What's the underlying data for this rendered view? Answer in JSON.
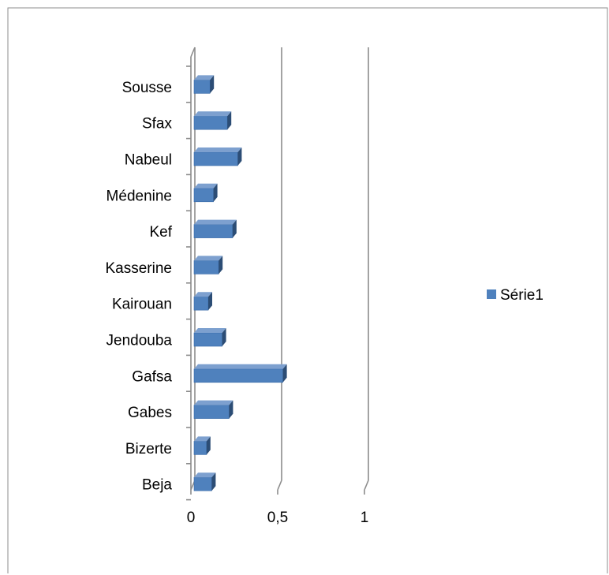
{
  "chart_data": {
    "type": "bar",
    "orientation": "horizontal",
    "style": "3d",
    "categories": [
      "Beja",
      "Bizerte",
      "Gabes",
      "Gafsa",
      "Jendouba",
      "Kairouan",
      "Kasserine",
      "Kef",
      "Médenine",
      "Nabeul",
      "Sfax",
      "Sousse"
    ],
    "series": [
      {
        "name": "Série1",
        "values": [
          0.12,
          0.09,
          0.22,
          0.53,
          0.18,
          0.1,
          0.16,
          0.24,
          0.13,
          0.27,
          0.21,
          0.11
        ],
        "color": "#4f81bd"
      }
    ],
    "xlim": [
      0,
      1
    ],
    "xticks": [
      "0",
      "0,5",
      "1"
    ],
    "grid": true,
    "legend": "right",
    "title": "",
    "xlabel": "",
    "ylabel": ""
  }
}
